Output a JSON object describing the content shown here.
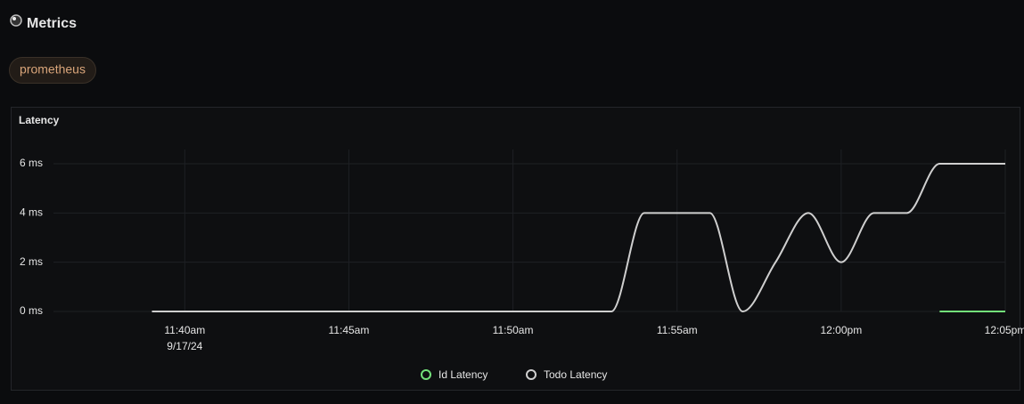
{
  "header": {
    "title": "Metrics",
    "badge": "prometheus"
  },
  "chart_data": {
    "type": "line",
    "title": "Latency",
    "x": [
      "11:39",
      "11:40",
      "11:41",
      "11:42",
      "11:43",
      "11:44",
      "11:45",
      "11:46",
      "11:47",
      "11:48",
      "11:49",
      "11:50",
      "11:51",
      "11:52",
      "11:53",
      "11:54",
      "11:55",
      "11:56",
      "11:57",
      "11:58",
      "11:59",
      "12:00",
      "12:01",
      "12:02",
      "12:03",
      "12:04",
      "12:05"
    ],
    "series": [
      {
        "name": "Id Latency",
        "color": "#73e07a",
        "values": [
          null,
          null,
          null,
          null,
          null,
          null,
          null,
          null,
          null,
          null,
          null,
          null,
          null,
          null,
          null,
          null,
          null,
          null,
          null,
          null,
          null,
          null,
          null,
          null,
          0,
          0,
          0
        ]
      },
      {
        "name": "Todo Latency",
        "color": "#cfcfcf",
        "values": [
          0,
          0,
          0,
          0,
          0,
          0,
          0,
          0,
          0,
          0,
          0,
          0,
          0,
          0,
          0,
          4,
          4,
          4,
          0,
          2,
          4,
          2,
          4,
          4,
          6,
          6,
          6
        ]
      }
    ],
    "xlim": [
      "11:36",
      "12:05"
    ],
    "xticks": [
      {
        "value": "11:40",
        "label": "11:40am"
      },
      {
        "value": "11:45",
        "label": "11:45am"
      },
      {
        "value": "11:50",
        "label": "11:50am"
      },
      {
        "value": "11:55",
        "label": "11:55am"
      },
      {
        "value": "12:00",
        "label": "12:00pm"
      },
      {
        "value": "12:05",
        "label": "12:05pm"
      }
    ],
    "date_label": "9/17/24",
    "ylim": [
      0,
      6
    ],
    "yticks": [
      {
        "value": 0,
        "label": "0 ms"
      },
      {
        "value": 2,
        "label": "2 ms"
      },
      {
        "value": 4,
        "label": "4 ms"
      },
      {
        "value": 6,
        "label": "6 ms"
      }
    ],
    "grid": true,
    "legend": "bottom"
  }
}
